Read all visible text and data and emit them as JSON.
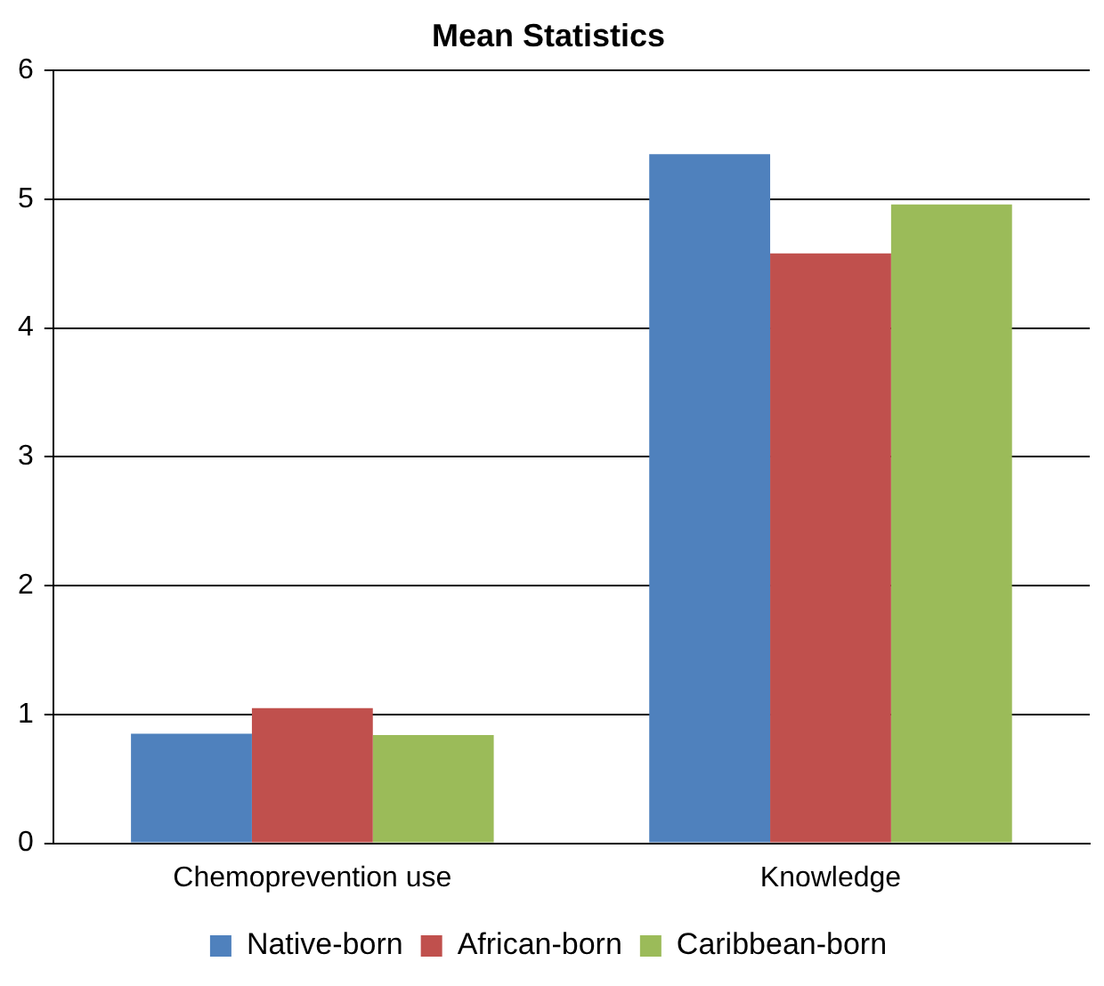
{
  "chart_data": {
    "type": "bar",
    "title": "Mean Statistics",
    "categories": [
      "Chemoprevention use",
      "Knowledge"
    ],
    "series": [
      {
        "name": "Native-born",
        "color": "#4f81bd",
        "values": [
          0.85,
          5.35
        ]
      },
      {
        "name": "African-born",
        "color": "#c0504d",
        "values": [
          1.05,
          4.58
        ]
      },
      {
        "name": "Caribbean-born",
        "color": "#9bbb59",
        "values": [
          0.84,
          4.96
        ]
      }
    ],
    "ylim": [
      0,
      6
    ],
    "yticks": [
      0,
      1,
      2,
      3,
      4,
      5,
      6
    ],
    "grid": "y",
    "legend": "bottom"
  }
}
